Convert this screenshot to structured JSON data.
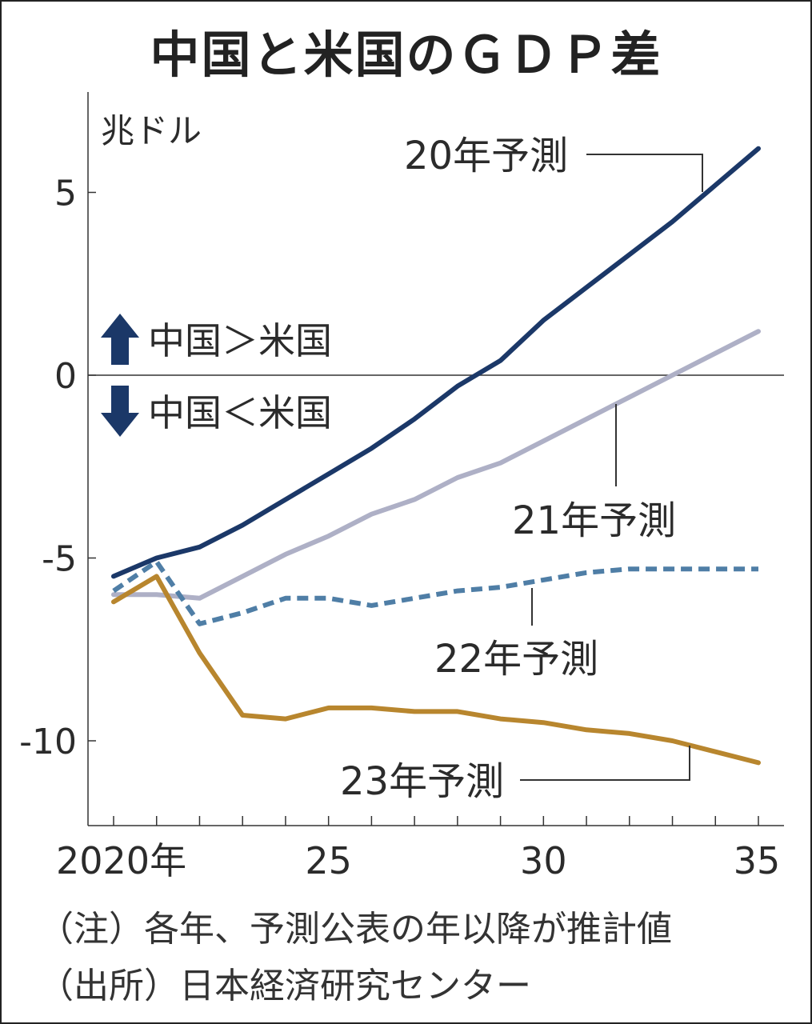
{
  "title": "中国と米国のＧＤＰ差",
  "notes": {
    "note": "（注）各年、予測公表の年以降が推計値",
    "source": "（出所）日本経済研究センター"
  },
  "chart_data": {
    "type": "line",
    "title": "中国と米国のＧＤＰ差",
    "ylabel": "兆ドル",
    "ylim": [
      -12,
      7.5
    ],
    "xlim": [
      2020,
      2035
    ],
    "yticks": [
      {
        "value": 5,
        "label": "5"
      },
      {
        "value": 0,
        "label": "0"
      },
      {
        "value": -5,
        "label": "-5"
      },
      {
        "value": -10,
        "label": "-10"
      }
    ],
    "xticks": [
      2020,
      2021,
      2022,
      2023,
      2024,
      2025,
      2026,
      2027,
      2028,
      2029,
      2030,
      2031,
      2032,
      2033,
      2034,
      2035
    ],
    "xticklabels": [
      {
        "value": 2020,
        "label": "2020年"
      },
      {
        "value": 2025,
        "label": "25"
      },
      {
        "value": 2030,
        "label": "30"
      },
      {
        "value": 2035,
        "label": "35"
      }
    ],
    "annotations": {
      "up": "中国＞米国",
      "down": "中国＜米国"
    },
    "series": [
      {
        "name": "20年予測",
        "color": "#1b3868",
        "style": "solid",
        "x": [
          2020,
          2021,
          2022,
          2023,
          2024,
          2025,
          2026,
          2027,
          2028,
          2029,
          2030,
          2031,
          2032,
          2033,
          2034,
          2035
        ],
        "values": [
          -5.5,
          -5.0,
          -4.7,
          -4.1,
          -3.4,
          -2.7,
          -2.0,
          -1.2,
          -0.3,
          0.4,
          1.5,
          2.4,
          3.3,
          4.2,
          5.2,
          6.2
        ]
      },
      {
        "name": "21年予測",
        "color": "#aeb0c6",
        "style": "solid",
        "x": [
          2020,
          2021,
          2022,
          2023,
          2024,
          2025,
          2026,
          2027,
          2028,
          2029,
          2030,
          2031,
          2032,
          2033,
          2034,
          2035
        ],
        "values": [
          -6.0,
          -6.0,
          -6.1,
          -5.5,
          -4.9,
          -4.4,
          -3.8,
          -3.4,
          -2.8,
          -2.4,
          -1.8,
          -1.2,
          -0.6,
          0.0,
          0.6,
          1.2
        ]
      },
      {
        "name": "22年予測",
        "color": "#4f7ea6",
        "style": "dashed",
        "x": [
          2020,
          2021,
          2022,
          2023,
          2024,
          2025,
          2026,
          2027,
          2028,
          2029,
          2030,
          2031,
          2032,
          2033,
          2034,
          2035
        ],
        "values": [
          -5.9,
          -5.1,
          -6.8,
          -6.5,
          -6.1,
          -6.1,
          -6.3,
          -6.1,
          -5.9,
          -5.8,
          -5.6,
          -5.4,
          -5.3,
          -5.3,
          -5.3,
          -5.3
        ]
      },
      {
        "name": "23年予測",
        "color": "#b8862e",
        "style": "solid",
        "x": [
          2020,
          2021,
          2022,
          2023,
          2024,
          2025,
          2026,
          2027,
          2028,
          2029,
          2030,
          2031,
          2032,
          2033,
          2034,
          2035
        ],
        "values": [
          -6.2,
          -5.5,
          -7.6,
          -9.3,
          -9.4,
          -9.1,
          -9.1,
          -9.2,
          -9.2,
          -9.4,
          -9.5,
          -9.7,
          -9.8,
          -10.0,
          -10.3,
          -10.6
        ]
      }
    ]
  }
}
